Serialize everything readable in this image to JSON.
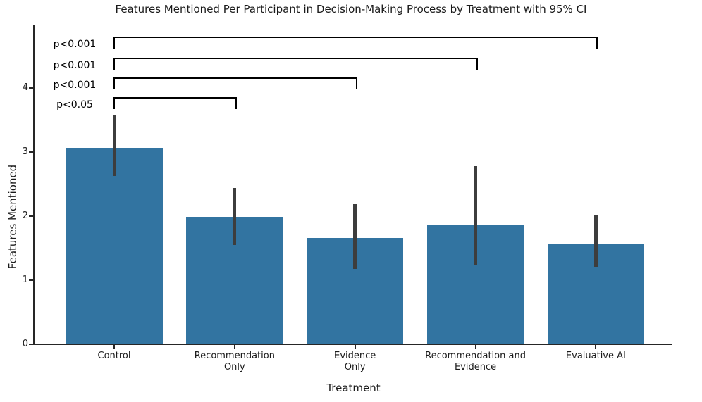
{
  "title": "Features Mentioned Per Participant in Decision-Making Process by Treatment with 95% CI",
  "chart_data": {
    "type": "bar",
    "title": "Features Mentioned Per Participant in Decision-Making Process by Treatment with 95% CI",
    "xlabel": "Treatment",
    "ylabel": "Features Mentioned",
    "categories": [
      "Control",
      "Recommendation\nOnly",
      "Evidence\nOnly",
      "Recommendation and\nEvidence",
      "Evaluative AI"
    ],
    "values": [
      3.07,
      1.99,
      1.66,
      1.87,
      1.56
    ],
    "ci_low": [
      2.63,
      1.55,
      1.18,
      1.23,
      1.21
    ],
    "ci_high": [
      3.57,
      2.44,
      2.19,
      2.78,
      2.01
    ],
    "yticks": [
      "0",
      "1",
      "2",
      "3",
      "4"
    ],
    "ylim": [
      0,
      4.98
    ],
    "grid": false,
    "legend": "none",
    "bar_color": "#3274a1",
    "error_color": "#3d3d3d",
    "annotations": [
      {
        "label": "p<0.001",
        "from": 0,
        "to": 4
      },
      {
        "label": "p<0.001",
        "from": 0,
        "to": 3
      },
      {
        "label": "p<0.001",
        "from": 0,
        "to": 2
      },
      {
        "label": "p<0.05",
        "from": 0,
        "to": 1
      }
    ]
  }
}
